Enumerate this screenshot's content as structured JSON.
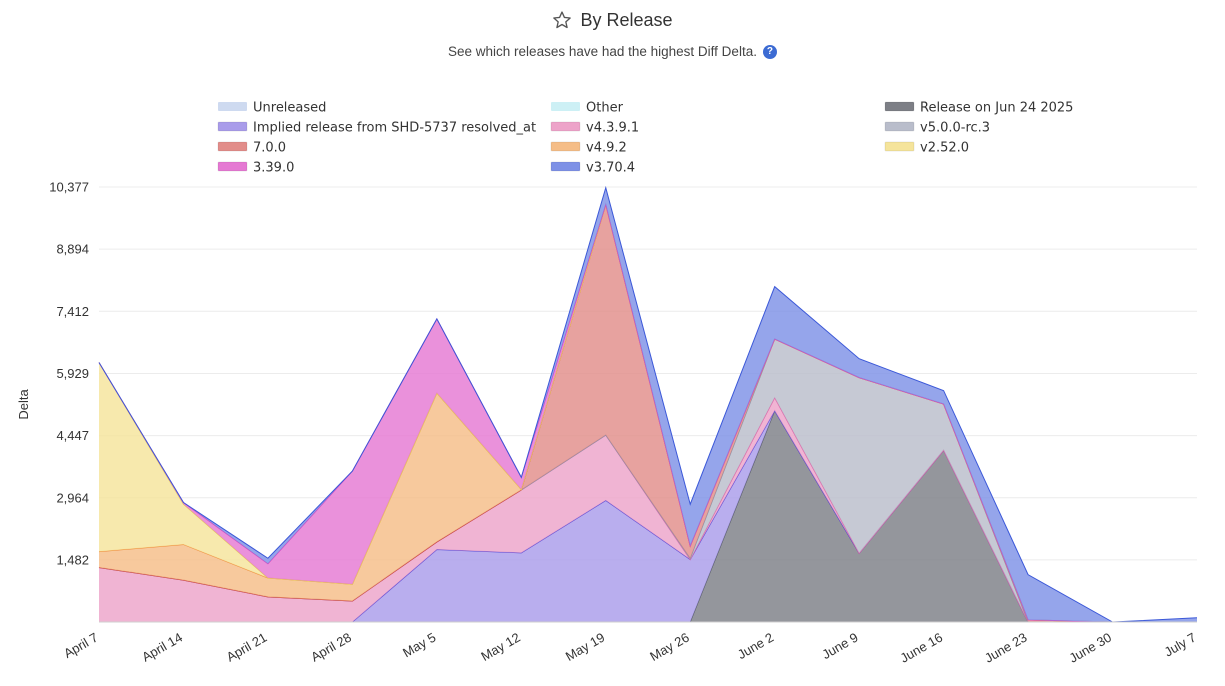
{
  "header": {
    "title": "By Release",
    "subtitle": "See which releases have had the highest Diff Delta.",
    "title_icon": "star-outline-icon",
    "help_icon": "question-circle-icon",
    "help_icon_glyph": "?"
  },
  "chart_data": {
    "type": "area",
    "stacked": true,
    "title": "By Release",
    "subtitle": "See which releases have had the highest Diff Delta.",
    "xlabel": "",
    "ylabel": "Delta",
    "x": [
      "April 7",
      "April 14",
      "April 21",
      "April 28",
      "May 5",
      "May 12",
      "May 19",
      "May 26",
      "June 2",
      "June 9",
      "June 16",
      "June 23",
      "June 30",
      "July 7"
    ],
    "y_ticks": [
      "1,482",
      "2,964",
      "4,447",
      "5,929",
      "7,412",
      "8,894",
      "10,377"
    ],
    "ylim": [
      0,
      10377
    ],
    "grid": true,
    "legend_position": "top",
    "legend": [
      {
        "name": "Unreleased",
        "color": "#c9d6ee",
        "hidden": true
      },
      {
        "name": "Other",
        "color": "#c8eef4",
        "hidden": true
      },
      {
        "name": "Release on Jun 24 2025",
        "color": "#7d7f86",
        "hidden": false
      },
      {
        "name": "Implied release from SHD-5737 resolved_at",
        "color": "#a99cea",
        "hidden": false
      },
      {
        "name": "v4.3.9.1",
        "color": "#eda3c9",
        "hidden": false
      },
      {
        "name": "v5.0.0-rc.3",
        "color": "#b9bdcb",
        "hidden": false
      },
      {
        "name": "7.0.0",
        "color": "#e28d8a",
        "hidden": false
      },
      {
        "name": "v4.9.2",
        "color": "#f5bd87",
        "hidden": false
      },
      {
        "name": "v2.52.0",
        "color": "#f5e49b",
        "hidden": false
      },
      {
        "name": "3.39.0",
        "color": "#e579d3",
        "hidden": false
      },
      {
        "name": "v3.70.4",
        "color": "#7e91e6",
        "hidden": false
      }
    ],
    "series": [
      {
        "name": "Release on Jun 24 2025",
        "color": "#7d7f86",
        "stroke": "#555a66",
        "values": [
          0,
          0,
          0,
          0,
          0,
          0,
          0,
          0,
          5040,
          1640,
          4100,
          0,
          0,
          0
        ]
      },
      {
        "name": "Implied release from SHD-5737 resolved_at",
        "color": "#a99cea",
        "stroke": "#5a4ad6",
        "values": [
          0,
          0,
          0,
          0,
          1730,
          1650,
          2900,
          1490,
          0,
          0,
          0,
          0,
          0,
          0
        ]
      },
      {
        "name": "v4.3.9.1",
        "color": "#eda3c9",
        "stroke": "#e060a8",
        "values": [
          1300,
          1000,
          600,
          500,
          180,
          1500,
          1560,
          0,
          310,
          0,
          0,
          0,
          0,
          0
        ]
      },
      {
        "name": "v5.0.0-rc.3",
        "color": "#b9bdcb",
        "stroke": "#8a90a6",
        "values": [
          0,
          0,
          0,
          0,
          0,
          0,
          0,
          30,
          1400,
          4190,
          1100,
          0,
          0,
          0
        ]
      },
      {
        "name": "7.0.0",
        "color": "#e28d8a",
        "stroke": "#cf3f3f",
        "values": [
          0,
          0,
          0,
          0,
          0,
          0,
          5500,
          290,
          0,
          0,
          0,
          50,
          0,
          0
        ]
      },
      {
        "name": "v4.9.2",
        "color": "#f5bd87",
        "stroke": "#ef8a3a",
        "values": [
          380,
          850,
          450,
          400,
          3550,
          10,
          0,
          0,
          0,
          0,
          0,
          0,
          0,
          0
        ]
      },
      {
        "name": "v2.52.0",
        "color": "#f5e49b",
        "stroke": "#e6cf55",
        "values": [
          4510,
          960,
          0,
          0,
          0,
          0,
          0,
          0,
          0,
          0,
          0,
          0,
          0,
          0
        ]
      },
      {
        "name": "3.39.0",
        "color": "#e579d3",
        "stroke": "#d644c0",
        "values": [
          0,
          40,
          340,
          2700,
          1770,
          290,
          0,
          0,
          0,
          0,
          0,
          0,
          0,
          0
        ]
      },
      {
        "name": "v3.70.4",
        "color": "#7e91e6",
        "stroke": "#3b58d8",
        "values": [
          0,
          0,
          130,
          0,
          0,
          0,
          400,
          1000,
          1250,
          450,
          320,
          1080,
          0,
          100
        ]
      }
    ]
  }
}
